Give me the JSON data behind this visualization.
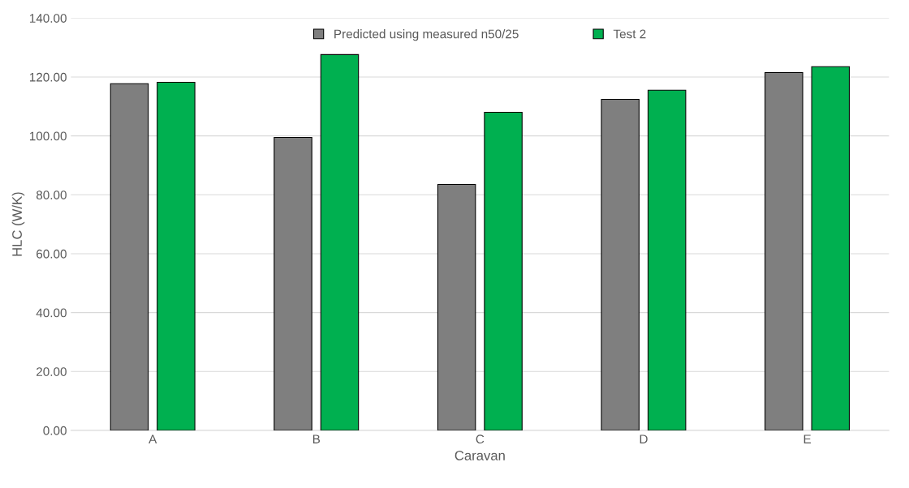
{
  "chart_data": {
    "type": "bar",
    "xlabel": "Caravan",
    "ylabel": "HLC (W/K)",
    "categories": [
      "A",
      "B",
      "C",
      "D",
      "E"
    ],
    "series": [
      {
        "name": "Predicted using measured n50/25",
        "color": "#7f7f7f",
        "values": [
          117.7,
          99.5,
          83.5,
          112.4,
          121.5
        ]
      },
      {
        "name": "Test 2",
        "color": "#00b050",
        "values": [
          118.2,
          127.6,
          108.0,
          115.5,
          123.5
        ]
      }
    ],
    "ylim": [
      0,
      140
    ],
    "yticks": [
      {
        "value": 0,
        "label": "0.00"
      },
      {
        "value": 20,
        "label": "20.00"
      },
      {
        "value": 40,
        "label": "40.00"
      },
      {
        "value": 60,
        "label": "60.00"
      },
      {
        "value": 80,
        "label": "80.00"
      },
      {
        "value": 100,
        "label": "100.00"
      },
      {
        "value": 120,
        "label": "120.00"
      },
      {
        "value": 140,
        "label": "140.00"
      }
    ],
    "grid": "y",
    "legend": "top"
  }
}
